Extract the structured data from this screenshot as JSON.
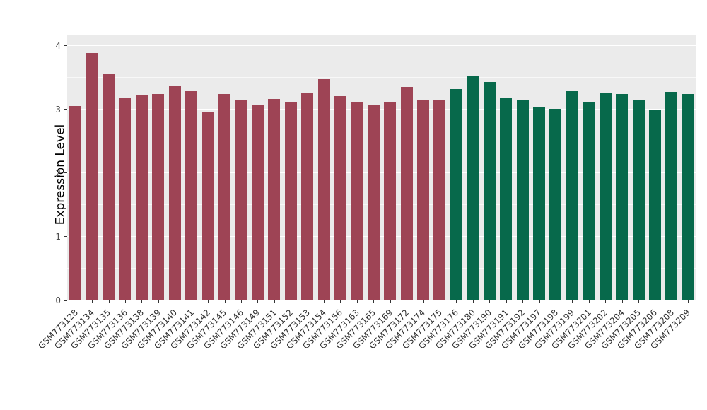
{
  "chart_data": {
    "type": "bar",
    "title": "",
    "ylabel": "Expression Level",
    "xlabel": "",
    "ylim": [
      0,
      4
    ],
    "yticks": [
      0,
      1,
      2,
      3,
      4
    ],
    "grid": "on",
    "legend": "none",
    "panel_background": "#EBEBEB",
    "gridline_color": "#FFFFFF",
    "categories": [
      "GSM773128",
      "GSM773134",
      "GSM773135",
      "GSM773136",
      "GSM773138",
      "GSM773139",
      "GSM773140",
      "GSM773141",
      "GSM773142",
      "GSM773145",
      "GSM773146",
      "GSM773149",
      "GSM773151",
      "GSM773152",
      "GSM773153",
      "GSM773154",
      "GSM773156",
      "GSM773163",
      "GSM773165",
      "GSM773169",
      "GSM773172",
      "GSM773174",
      "GSM773175",
      "GSM773176",
      "GSM773180",
      "GSM773190",
      "GSM773191",
      "GSM773192",
      "GSM773197",
      "GSM773198",
      "GSM773199",
      "GSM773201",
      "GSM773202",
      "GSM773204",
      "GSM773205",
      "GSM773206",
      "GSM773208",
      "GSM773209"
    ],
    "values": [
      3.06,
      3.89,
      3.56,
      3.19,
      3.22,
      3.24,
      3.37,
      3.29,
      2.96,
      3.25,
      3.14,
      3.08,
      3.17,
      3.12,
      3.26,
      3.48,
      3.21,
      3.11,
      3.07,
      3.11,
      3.36,
      3.16,
      3.16,
      3.32,
      3.52,
      3.43,
      3.18,
      3.14,
      3.05,
      3.01,
      3.29,
      3.11,
      3.27,
      3.25,
      3.15,
      3.0,
      3.28,
      3.24
    ],
    "bar_groups": [
      "group1",
      "group1",
      "group1",
      "group1",
      "group1",
      "group1",
      "group1",
      "group1",
      "group1",
      "group1",
      "group1",
      "group1",
      "group1",
      "group1",
      "group1",
      "group1",
      "group1",
      "group1",
      "group1",
      "group1",
      "group1",
      "group1",
      "group1",
      "group2",
      "group2",
      "group2",
      "group2",
      "group2",
      "group2",
      "group2",
      "group2",
      "group2",
      "group2",
      "group2",
      "group2",
      "group2",
      "group2",
      "group2"
    ],
    "group_colors": {
      "group1": "#9E4455",
      "group2": "#07694B"
    }
  }
}
